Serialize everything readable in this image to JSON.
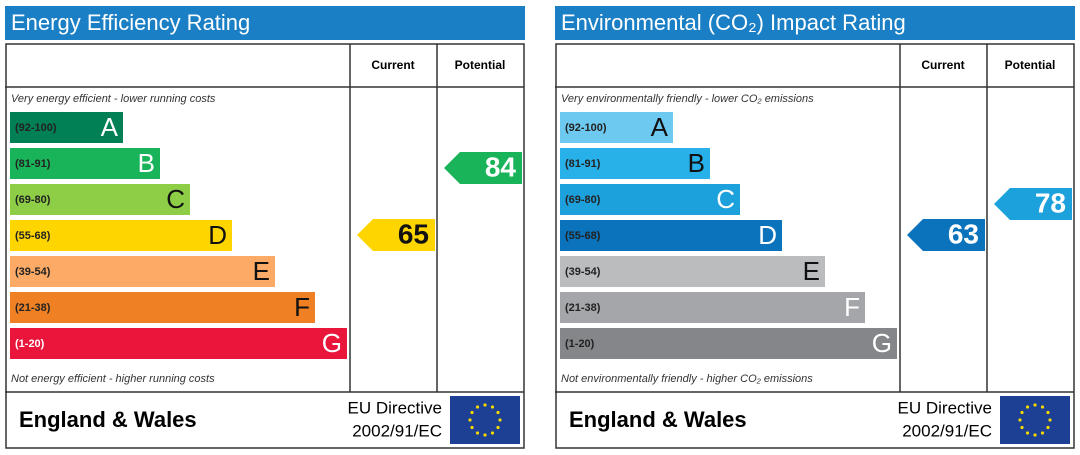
{
  "panels": [
    {
      "title": "Energy Efficiency Rating",
      "headers": [
        "Current",
        "Potential"
      ],
      "top_note": "Very energy efficient - lower running costs",
      "bottom_note": "Not energy efficient - higher running costs",
      "bands": [
        {
          "range": "(92-100)",
          "letter": "A",
          "color": "#008054"
        },
        {
          "range": "(81-91)",
          "letter": "B",
          "color": "#19b459"
        },
        {
          "range": "(69-80)",
          "letter": "C",
          "color": "#8dce46"
        },
        {
          "range": "(55-68)",
          "letter": "D",
          "color": "#ffd500"
        },
        {
          "range": "(39-54)",
          "letter": "E",
          "color": "#fcaa65"
        },
        {
          "range": "(21-38)",
          "letter": "F",
          "color": "#ef8023"
        },
        {
          "range": "(1-20)",
          "letter": "G",
          "color": "#e9153b"
        }
      ],
      "current": 65,
      "potential": 84,
      "footer": {
        "region": "England & Wales",
        "directive": "EU Directive",
        "code": "2002/91/EC"
      }
    },
    {
      "title": "Environmental (CO₂) Impact Rating",
      "headers": [
        "Current",
        "Potential"
      ],
      "top_note": "Very environmentally friendly - lower CO₂ emissions",
      "bottom_note": "Not environmentally friendly - higher CO₂ emissions",
      "bands": [
        {
          "range": "(92-100)",
          "letter": "A",
          "color": "#6dc9f0"
        },
        {
          "range": "(81-91)",
          "letter": "B",
          "color": "#28b0e8"
        },
        {
          "range": "(69-80)",
          "letter": "C",
          "color": "#1da1dd"
        },
        {
          "range": "(55-68)",
          "letter": "D",
          "color": "#0a73bb"
        },
        {
          "range": "(39-54)",
          "letter": "E",
          "color": "#bbbcbe"
        },
        {
          "range": "(21-38)",
          "letter": "F",
          "color": "#a5a6a9"
        },
        {
          "range": "(1-20)",
          "letter": "G",
          "color": "#858689"
        }
      ],
      "current": 63,
      "potential": 78,
      "footer": {
        "region": "England & Wales",
        "directive": "EU Directive",
        "code": "2002/91/EC"
      }
    }
  ]
}
